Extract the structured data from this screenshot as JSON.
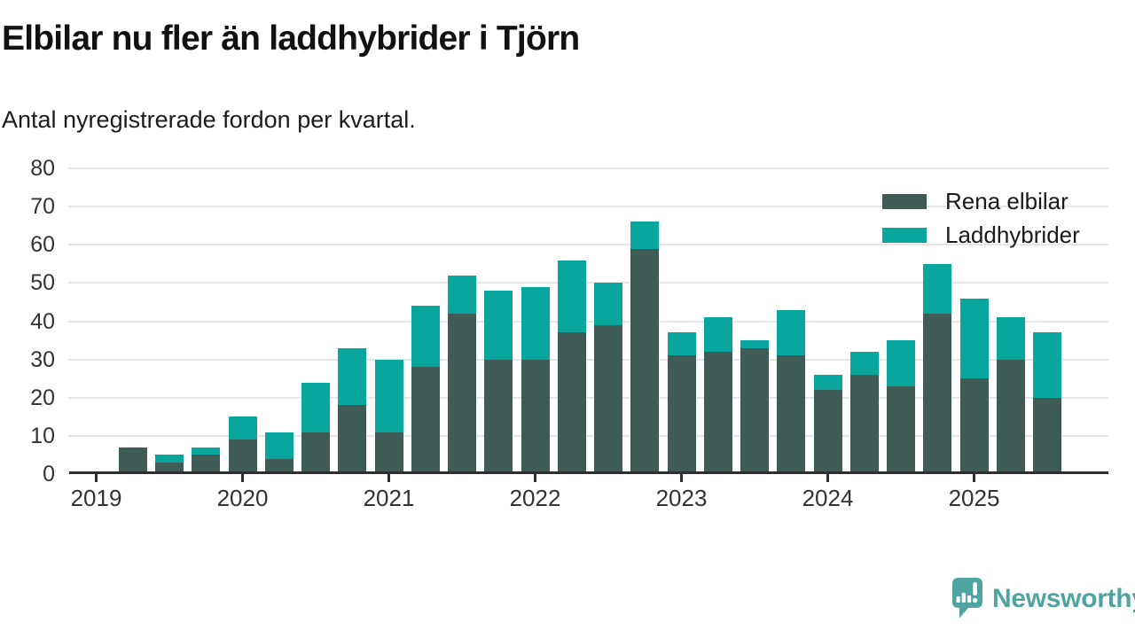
{
  "header": {
    "title": "Elbilar nu fler än laddhybrider i Tjörn",
    "subtitle": "Antal nyregistrerade fordon per kvartal."
  },
  "legend": {
    "items": [
      {
        "label": "Rena elbilar",
        "color": "#3E5B56"
      },
      {
        "label": "Laddhybrider",
        "color": "#09A69E"
      }
    ]
  },
  "footer": {
    "brand": "Newsworthy",
    "brand_color": "#4FA4A1",
    "logo_icon": "speech-bubble-bar-chart-exclamation"
  },
  "colors": {
    "dark_series": "#3E5B56",
    "teal_series": "#09A69E",
    "gridline": "#e6e6e6",
    "axis": "#2f2f2f",
    "title_text": "#111111",
    "label_text": "#333333"
  },
  "chart_data": {
    "type": "bar",
    "stacked": true,
    "title": "Elbilar nu fler än laddhybrider i Tjörn",
    "subtitle": "Antal nyregistrerade fordon per kvartal.",
    "xlabel": "",
    "ylabel": "",
    "ylim": [
      0,
      80
    ],
    "yticks": [
      0,
      10,
      20,
      30,
      40,
      50,
      60,
      70,
      80
    ],
    "year_ticks": [
      "2019",
      "2020",
      "2021",
      "2022",
      "2023",
      "2024",
      "2025"
    ],
    "grid": true,
    "legend_position": "top-right",
    "categories": [
      "2019-Q2",
      "2019-Q3",
      "2019-Q4",
      "2020-Q1",
      "2020-Q2",
      "2020-Q3",
      "2020-Q4",
      "2021-Q1",
      "2021-Q2",
      "2021-Q3",
      "2021-Q4",
      "2022-Q1",
      "2022-Q2",
      "2022-Q3",
      "2022-Q4",
      "2023-Q1",
      "2023-Q2",
      "2023-Q3",
      "2023-Q4",
      "2024-Q1",
      "2024-Q2",
      "2024-Q3",
      "2024-Q4",
      "2025-Q1",
      "2025-Q2",
      "2025-Q3"
    ],
    "series": [
      {
        "name": "Rena elbilar",
        "color": "#3E5B56",
        "values": [
          7,
          3,
          5,
          9,
          4,
          11,
          18,
          11,
          28,
          42,
          30,
          30,
          37,
          39,
          59,
          31,
          32,
          33,
          31,
          22,
          26,
          23,
          42,
          25,
          30,
          20
        ]
      },
      {
        "name": "Laddhybrider",
        "color": "#09A69E",
        "values": [
          0,
          2,
          2,
          6,
          7,
          13,
          15,
          19,
          16,
          10,
          18,
          19,
          19,
          11,
          7,
          6,
          9,
          2,
          12,
          4,
          6,
          12,
          13,
          21,
          11,
          17
        ]
      }
    ],
    "totals": [
      7,
      5,
      7,
      15,
      11,
      24,
      33,
      30,
      44,
      52,
      48,
      49,
      56,
      50,
      66,
      37,
      41,
      35,
      43,
      26,
      32,
      35,
      55,
      46,
      41,
      37
    ]
  }
}
